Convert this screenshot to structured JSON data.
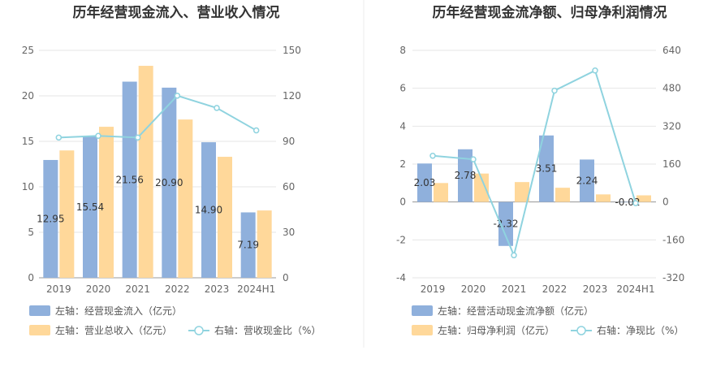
{
  "chart_data": [
    {
      "type": "bar",
      "title": "历年经营现金流入、营业收入情况",
      "categories": [
        "2019",
        "2020",
        "2021",
        "2022",
        "2023",
        "2024H1"
      ],
      "series": [
        {
          "name": "左轴：经营现金流入（亿元）",
          "axis": "left",
          "kind": "bar",
          "color": "#8fb0dc",
          "values": [
            12.95,
            15.54,
            21.56,
            20.9,
            14.9,
            7.19
          ],
          "labels": [
            "12.95",
            "15.54",
            "21.56",
            "20.90",
            "14.90",
            "7.19"
          ]
        },
        {
          "name": "左轴：营业总收入（亿元）",
          "axis": "left",
          "kind": "bar",
          "color": "#ffd89a",
          "values": [
            14.0,
            16.6,
            23.3,
            17.4,
            13.3,
            7.4
          ]
        },
        {
          "name": "右轴：营收现金比（%）",
          "axis": "right",
          "kind": "line",
          "color": "#8fd3df",
          "values": [
            92.5,
            93.6,
            92.5,
            120.1,
            112.0,
            97.2
          ]
        }
      ],
      "left_axis": {
        "min": 0,
        "max": 25,
        "ticks": [
          "0",
          "5",
          "10",
          "15",
          "20",
          "25"
        ]
      },
      "right_axis": {
        "min": 0,
        "max": 150,
        "ticks": [
          "0",
          "30",
          "60",
          "90",
          "120",
          "150"
        ]
      }
    },
    {
      "type": "bar",
      "title": "历年经营现金流净额、归母净利润情况",
      "categories": [
        "2019",
        "2020",
        "2021",
        "2022",
        "2023",
        "2024H1"
      ],
      "series": [
        {
          "name": "左轴：经营活动现金流净额（亿元）",
          "axis": "left",
          "kind": "bar",
          "color": "#8fb0dc",
          "values": [
            2.03,
            2.78,
            -2.32,
            3.51,
            2.24,
            -0.02
          ],
          "labels": [
            "2.03",
            "2.78",
            "-2.32",
            "3.51",
            "2.24",
            "-0.02"
          ]
        },
        {
          "name": "左轴：归母净利润（亿元）",
          "axis": "left",
          "kind": "bar",
          "color": "#ffd89a",
          "values": [
            1.0,
            1.5,
            1.05,
            0.75,
            0.4,
            0.35
          ]
        },
        {
          "name": "右轴：净现比（%）",
          "axis": "right",
          "kind": "line",
          "color": "#8fd3df",
          "values": [
            195,
            180,
            -225,
            470,
            555,
            -5
          ]
        }
      ],
      "left_axis": {
        "min": -4,
        "max": 8,
        "ticks": [
          "-4",
          "-2",
          "0",
          "2",
          "4",
          "6",
          "8"
        ]
      },
      "right_axis": {
        "min": -320,
        "max": 640,
        "ticks": [
          "-320",
          "-160",
          "0",
          "160",
          "320",
          "480",
          "640"
        ]
      }
    }
  ]
}
